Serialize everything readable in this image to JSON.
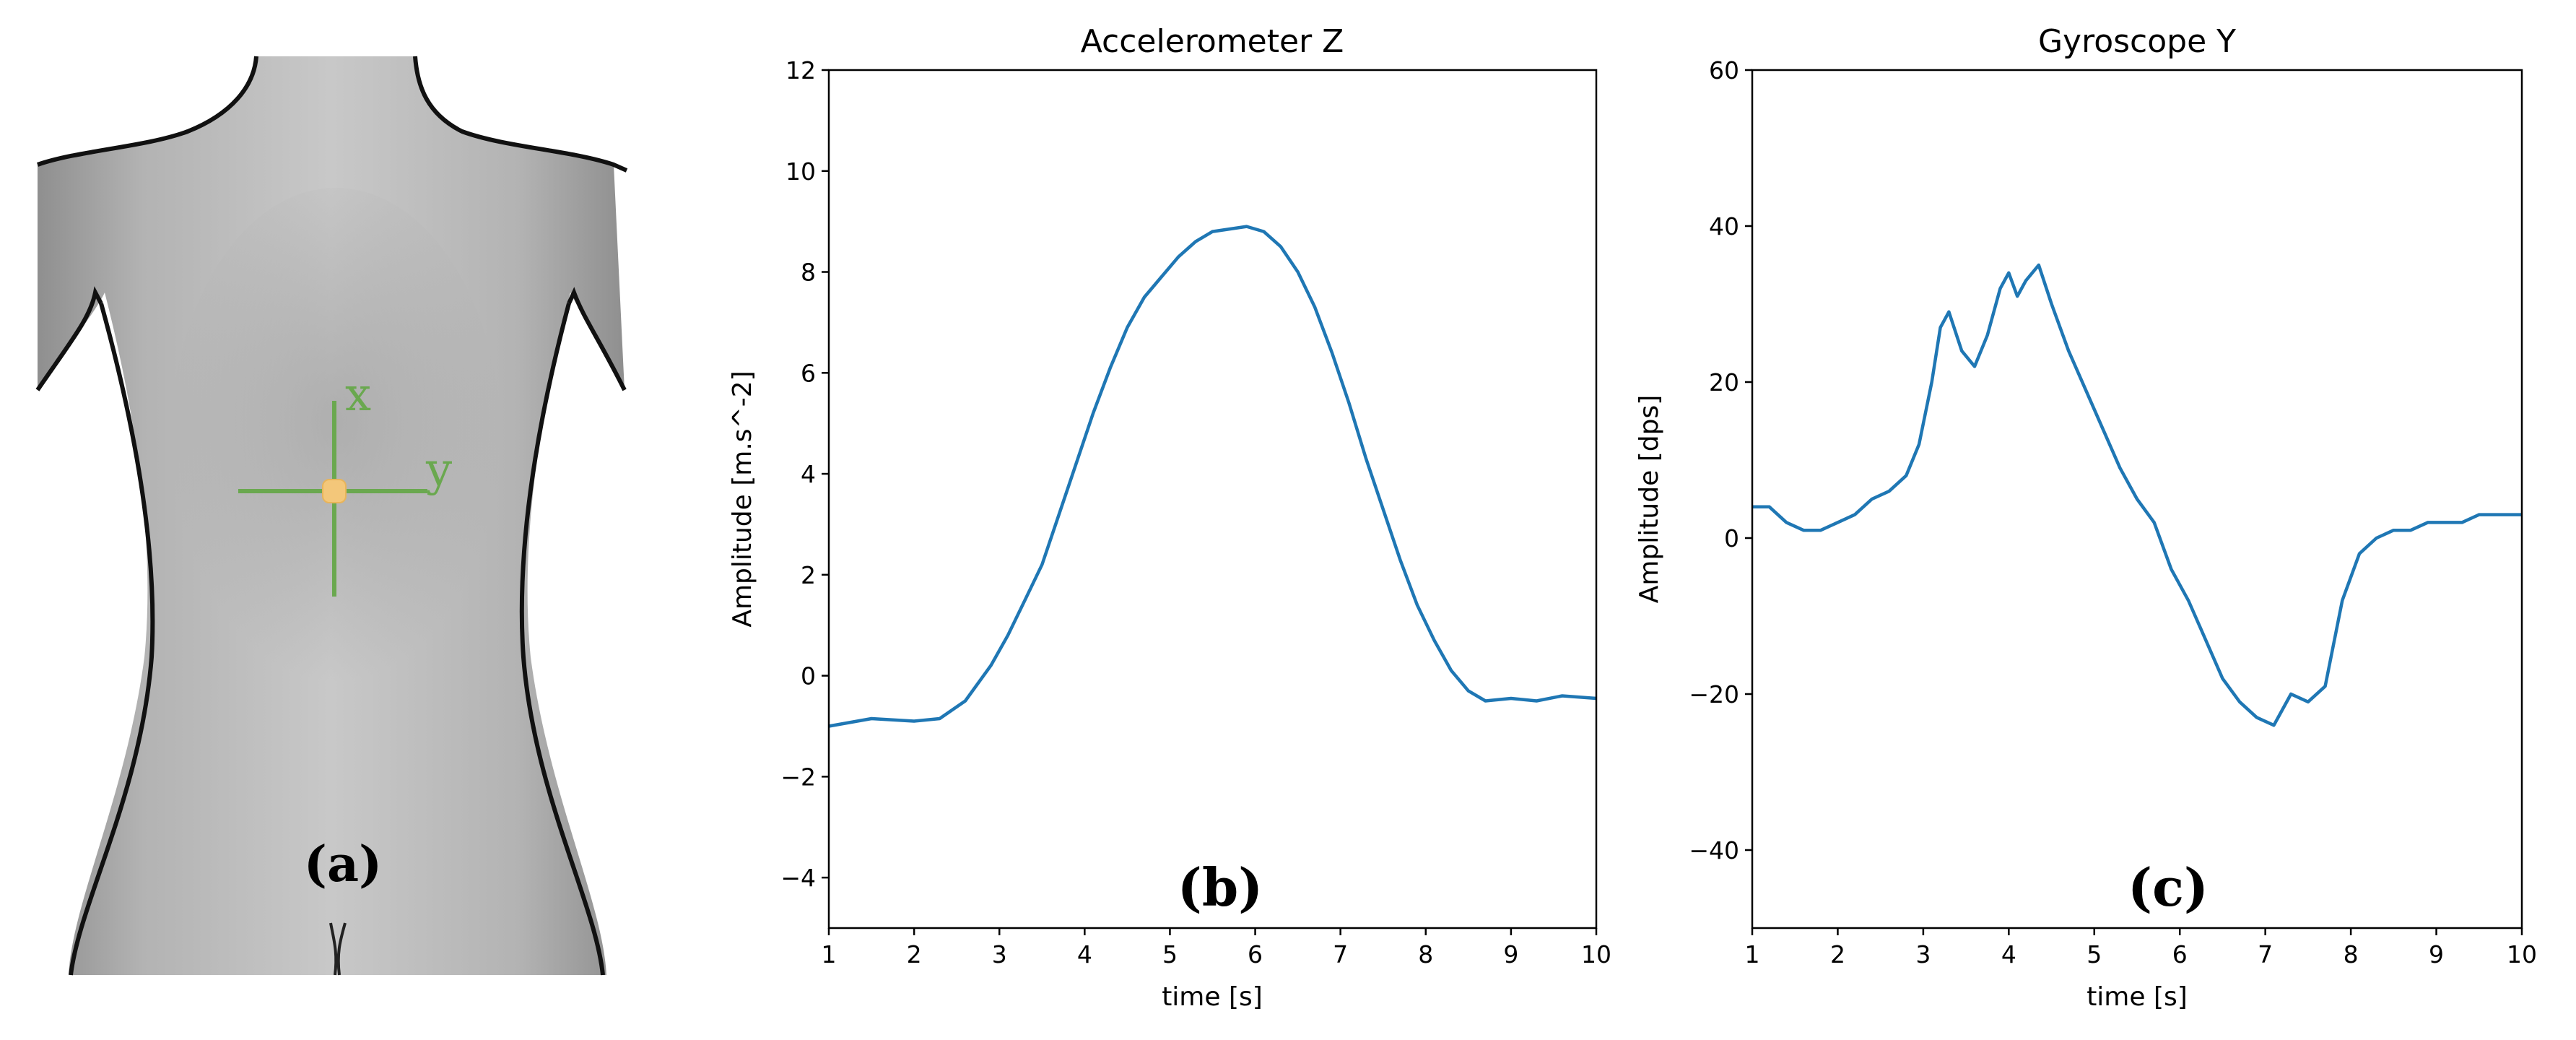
{
  "panel_labels": {
    "a": "(a)",
    "b": "(b)",
    "c": "(c)"
  },
  "body_axes": {
    "x_label": "x",
    "y_label": "y"
  },
  "colors": {
    "line": "#1f77b4",
    "axis_marker": "#6aa84f",
    "sensor": "#f3c77a",
    "body_fill": "#b4b4b4",
    "body_outline": "#111111"
  },
  "chart_data": [
    {
      "type": "line",
      "title": "Accelerometer Z",
      "xlabel": "time [s]",
      "ylabel": "Amplitude [m.s^-2]",
      "xlim": [
        1,
        10
      ],
      "ylim": [
        -5,
        12
      ],
      "xticks": [
        1,
        2,
        3,
        4,
        5,
        6,
        7,
        8,
        9,
        10
      ],
      "yticks": [
        -4,
        -2,
        0,
        2,
        4,
        6,
        8,
        10,
        12
      ],
      "grid": false,
      "series": [
        {
          "x": [
            1.0,
            1.5,
            2.0,
            2.3,
            2.6,
            2.9,
            3.1,
            3.3,
            3.5,
            3.7,
            3.9,
            4.1,
            4.3,
            4.5,
            4.7,
            4.9,
            5.1,
            5.3,
            5.5,
            5.7,
            5.9,
            6.1,
            6.3,
            6.5,
            6.7,
            6.9,
            7.1,
            7.3,
            7.5,
            7.7,
            7.9,
            8.1,
            8.3,
            8.5,
            8.7,
            9.0,
            9.3,
            9.6,
            10.0
          ],
          "y": [
            -1.0,
            -0.85,
            -0.9,
            -0.85,
            -0.5,
            0.2,
            0.8,
            1.5,
            2.2,
            3.2,
            4.2,
            5.2,
            6.1,
            6.9,
            7.5,
            7.9,
            8.3,
            8.6,
            8.8,
            8.85,
            8.9,
            8.8,
            8.5,
            8.0,
            7.3,
            6.4,
            5.4,
            4.3,
            3.3,
            2.3,
            1.4,
            0.7,
            0.1,
            -0.3,
            -0.5,
            -0.45,
            -0.5,
            -0.4,
            -0.45
          ]
        }
      ]
    },
    {
      "type": "line",
      "title": "Gyroscope Y",
      "xlabel": "time [s]",
      "ylabel": "Amplitude [dps]",
      "xlim": [
        1,
        10
      ],
      "ylim": [
        -50,
        60
      ],
      "xticks": [
        1,
        2,
        3,
        4,
        5,
        6,
        7,
        8,
        9,
        10
      ],
      "yticks": [
        -40,
        -20,
        0,
        20,
        40,
        60
      ],
      "grid": false,
      "series": [
        {
          "x": [
            1.0,
            1.2,
            1.4,
            1.6,
            1.8,
            2.0,
            2.2,
            2.4,
            2.6,
            2.8,
            2.95,
            3.1,
            3.2,
            3.3,
            3.45,
            3.6,
            3.75,
            3.9,
            4.0,
            4.1,
            4.2,
            4.35,
            4.5,
            4.7,
            4.9,
            5.1,
            5.3,
            5.5,
            5.7,
            5.9,
            6.1,
            6.3,
            6.5,
            6.7,
            6.9,
            7.1,
            7.3,
            7.5,
            7.7,
            7.9,
            8.1,
            8.3,
            8.5,
            8.7,
            8.9,
            9.1,
            9.3,
            9.5,
            9.7,
            10.0
          ],
          "y": [
            4,
            4,
            2,
            1,
            1,
            2,
            3,
            5,
            6,
            8,
            12,
            20,
            27,
            29,
            24,
            22,
            26,
            32,
            34,
            31,
            33,
            35,
            30,
            24,
            19,
            14,
            9,
            5,
            2,
            -4,
            -8,
            -13,
            -18,
            -21,
            -23,
            -24,
            -20,
            -21,
            -19,
            -8,
            -2,
            0,
            1,
            1,
            2,
            2,
            2,
            3,
            3,
            3
          ]
        }
      ]
    }
  ]
}
